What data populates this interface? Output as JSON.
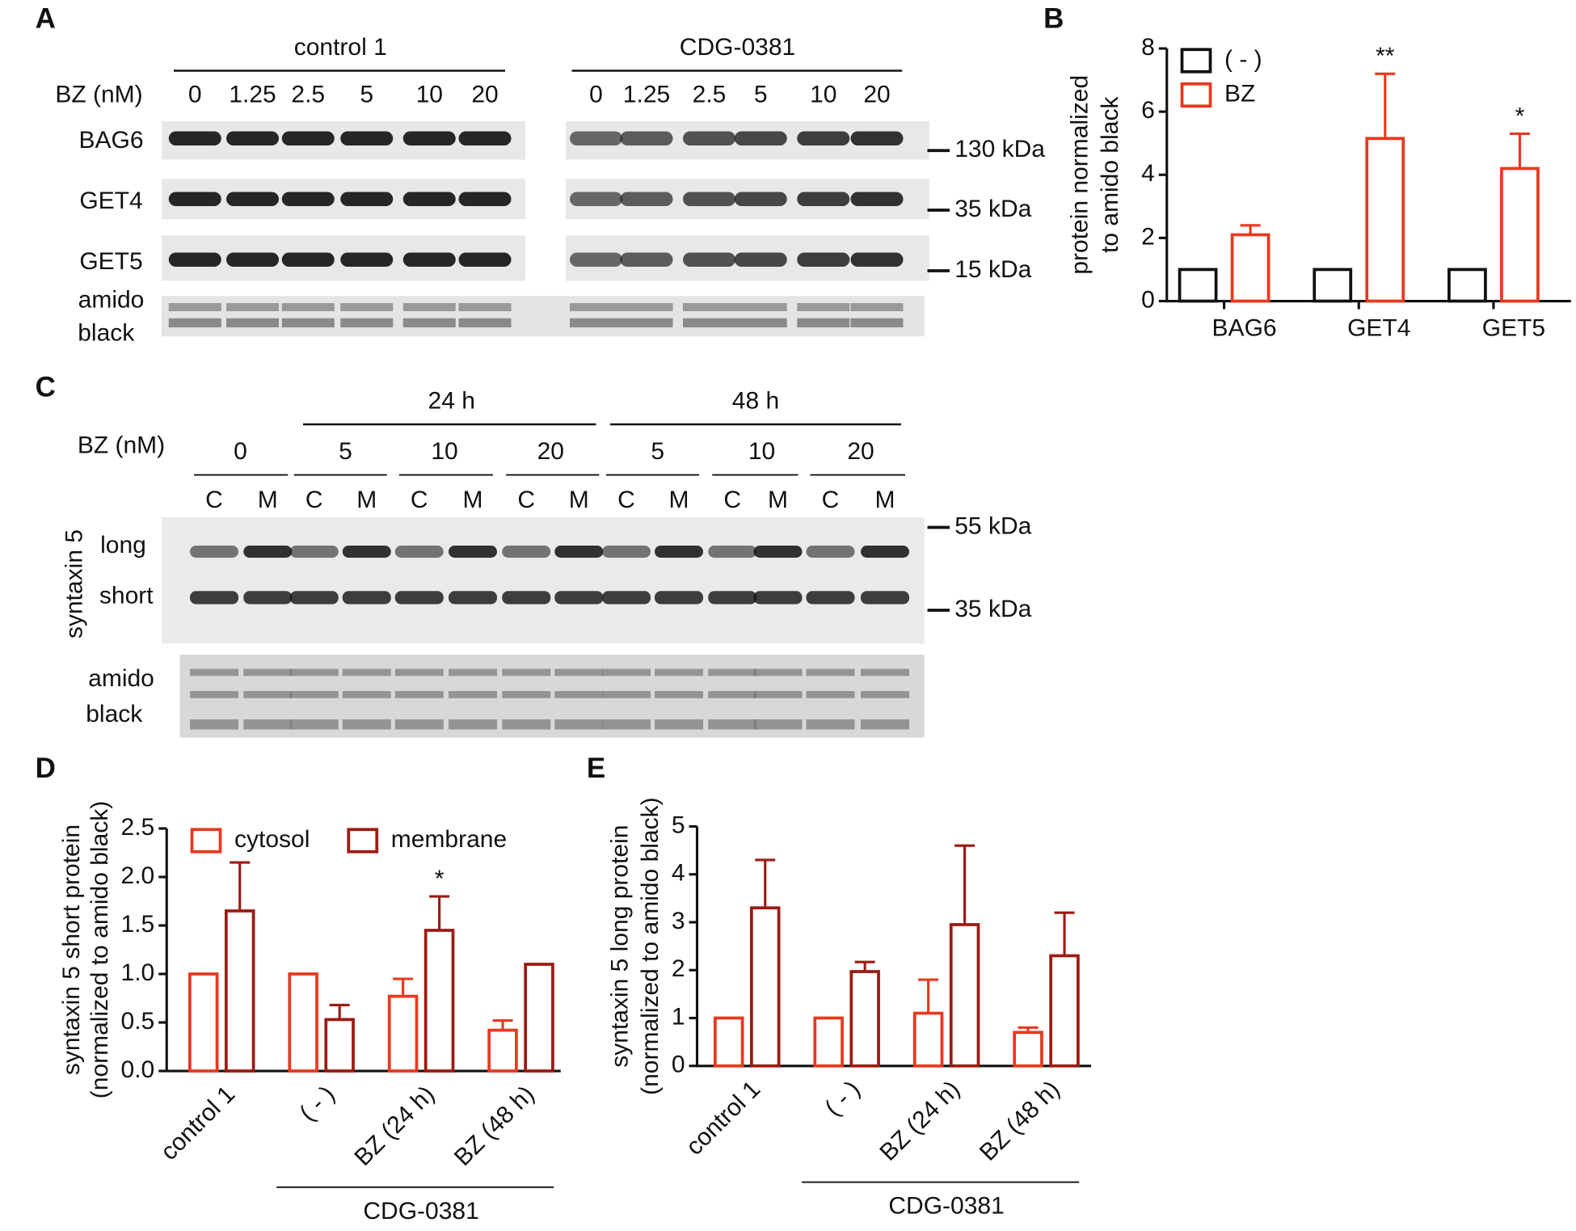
{
  "panel_labels": [
    "A",
    "B",
    "C",
    "D",
    "E"
  ],
  "blot_a": {
    "groups": [
      "control 1",
      "CDG-0381"
    ],
    "dose_label": "BZ (nM)",
    "doses": [
      "0",
      "1.25",
      "2.5",
      "5",
      "10",
      "20",
      "0",
      "1.25",
      "2.5",
      "5",
      "10",
      "20"
    ],
    "rows": [
      "BAG6",
      "GET4",
      "GET5",
      "amido",
      "black"
    ],
    "markers": [
      "130 kDa",
      "35 kDa",
      "15 kDa"
    ]
  },
  "blot_c": {
    "times": [
      "24 h",
      "48 h"
    ],
    "dose_label": "BZ (nM)",
    "doses": [
      "0",
      "5",
      "10",
      "20",
      "5",
      "10",
      "20"
    ],
    "lanes": [
      "C",
      "M",
      "C",
      "M",
      "C",
      "M",
      "C",
      "M",
      "C",
      "M",
      "C",
      "M",
      "C",
      "M"
    ],
    "protein": "syntaxin 5",
    "rows": [
      "long",
      "short",
      "amido",
      "black"
    ],
    "markers": [
      "55 kDa",
      "35 kDa"
    ]
  },
  "chart_data": [
    {
      "type": "bar",
      "y_label": [
        "protein normalized",
        "to amido black"
      ],
      "categories": [
        "BAG6",
        "GET4",
        "GET5"
      ],
      "series": [
        {
          "name": "( - )",
          "color": "#111111",
          "values": [
            1,
            1,
            1
          ],
          "errors": [
            null,
            null,
            null
          ]
        },
        {
          "name": "BZ",
          "color": "#e8391f",
          "values": [
            2.1,
            5.15,
            4.2
          ],
          "errors": [
            0.3,
            2.05,
            1.1
          ],
          "significance": [
            null,
            "**",
            "*"
          ]
        }
      ],
      "ylim": [
        0,
        8
      ],
      "yticks": [
        0,
        2,
        4,
        6,
        8
      ],
      "legend": "top-left"
    },
    {
      "type": "bar",
      "y_label": [
        "syntaxin 5 short protein",
        "(normalized to amido black)"
      ],
      "categories": [
        "control 1",
        "( - )",
        "BZ (24 h)",
        "BZ (48 h)"
      ],
      "group_label": "CDG-0381",
      "series": [
        {
          "name": "cytosol",
          "color": "#e8391f",
          "values": [
            1,
            1,
            0.77,
            0.42
          ],
          "errors": [
            null,
            null,
            0.18,
            0.1
          ]
        },
        {
          "name": "membrane",
          "color": "#9b1b12",
          "values": [
            1.65,
            0.53,
            1.45,
            1.1
          ],
          "errors": [
            0.5,
            0.15,
            0.35,
            null
          ],
          "significance": [
            null,
            null,
            "*",
            null
          ]
        }
      ],
      "ylim": [
        0,
        2.5
      ],
      "yticks": [
        {
          "value": 0,
          "label": "0.0"
        },
        0.5,
        {
          "value": 1,
          "label": "1.0"
        },
        1.5,
        {
          "value": 2,
          "label": "2.0"
        },
        2.5
      ],
      "legend": "top"
    },
    {
      "type": "bar",
      "y_label": [
        "syntaxin 5 long protein",
        "(normalized to amido black)"
      ],
      "categories": [
        "control 1",
        "( - )",
        "BZ (24 h)",
        "BZ (48 h)"
      ],
      "group_label": "CDG-0381",
      "series": [
        {
          "color": "#e8391f",
          "values": [
            1,
            1,
            1.1,
            0.7
          ],
          "errors": [
            null,
            null,
            0.7,
            0.1
          ]
        },
        {
          "color": "#9b1b12",
          "values": [
            3.3,
            1.97,
            2.95,
            2.3
          ],
          "errors": [
            1.0,
            0.2,
            1.65,
            0.9
          ]
        }
      ],
      "ylim": [
        0,
        5
      ],
      "yticks": [
        0,
        1,
        2,
        3,
        4,
        5
      ]
    }
  ]
}
